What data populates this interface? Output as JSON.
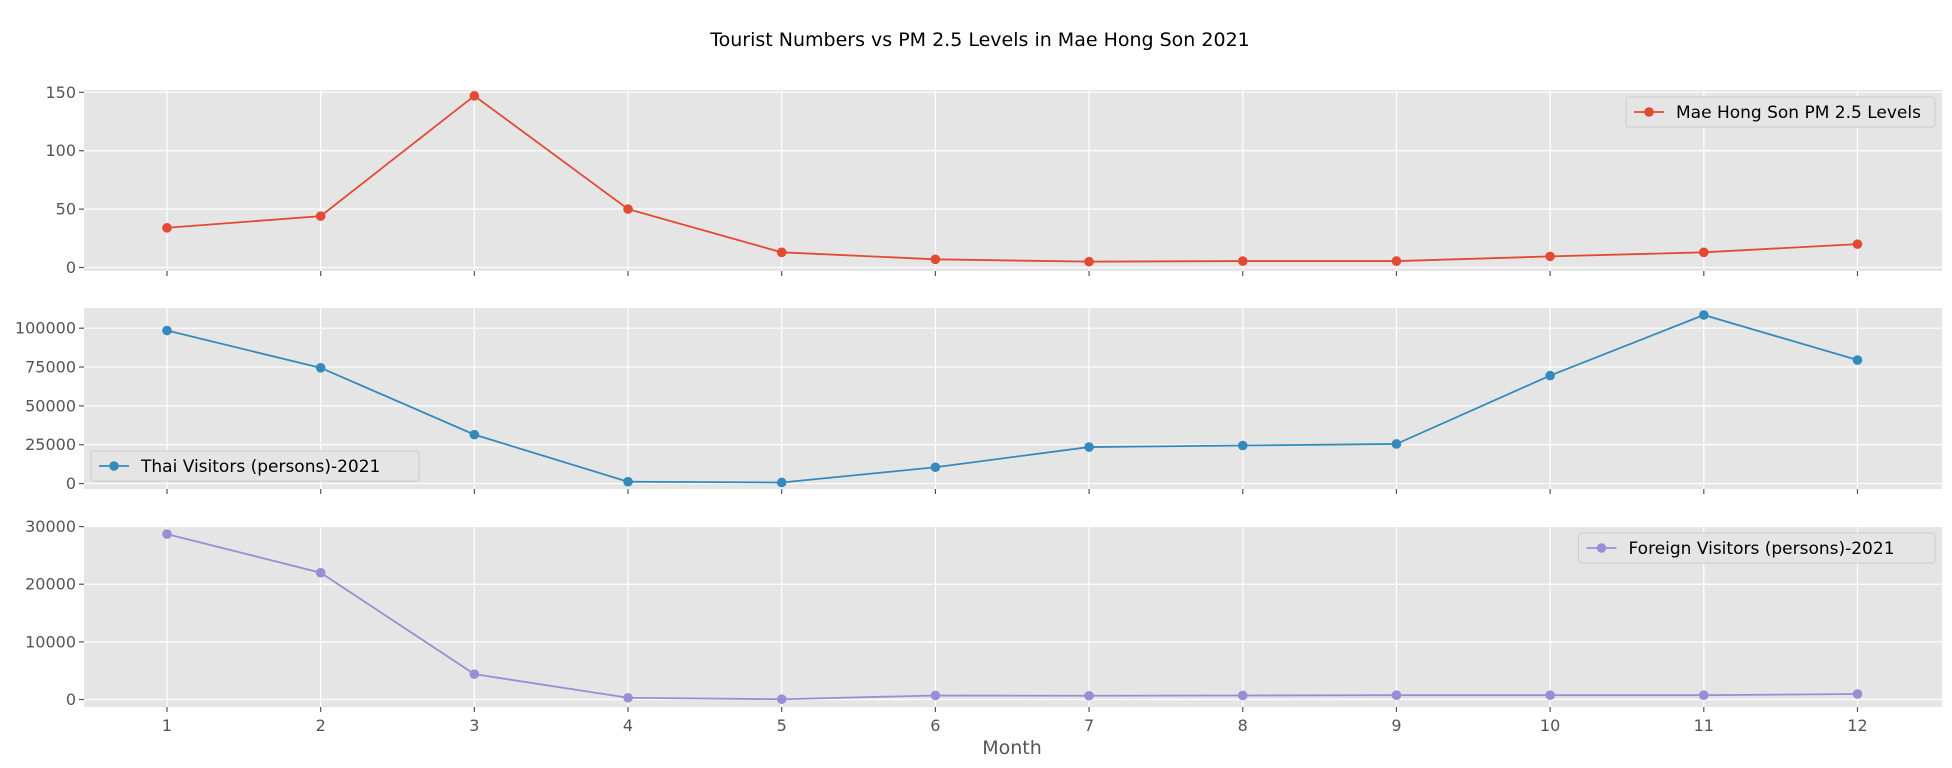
{
  "title": "Tourist Numbers vs PM 2.5 Levels  in Mae Hong Son 2021",
  "chart_data": {
    "type": "line",
    "title": "Tourist Numbers vs PM 2.5 Levels  in Mae Hong Son 2021",
    "xlabel": "Month",
    "x": [
      1,
      2,
      3,
      4,
      5,
      6,
      7,
      8,
      9,
      10,
      11,
      12
    ],
    "x_tick_labels": [
      "1",
      "2",
      "3",
      "4",
      "5",
      "6",
      "7",
      "8",
      "9",
      "10",
      "11",
      "12"
    ],
    "grid": true,
    "subplots": [
      {
        "name": "Mae Hong Son PM 2.5 Levels",
        "color": "#E24A33",
        "values": [
          34,
          44,
          147,
          50,
          13,
          7,
          5,
          5.5,
          5.5,
          9.5,
          13,
          20
        ],
        "ylim": [
          -3,
          152
        ],
        "yticks": [
          0,
          50,
          100,
          150
        ],
        "ytick_labels": [
          "0",
          "50",
          "100",
          "150"
        ],
        "legend_position": "upper right",
        "legend_label": "Mae Hong Son PM 2.5 Levels"
      },
      {
        "name": "Thai Visitors (persons)-2021",
        "color": "#348ABD",
        "values": [
          98500,
          74500,
          31500,
          1200,
          700,
          10500,
          23500,
          24500,
          25500,
          69500,
          108500,
          79500
        ],
        "ylim": [
          -3500,
          113000
        ],
        "yticks": [
          0,
          25000,
          50000,
          75000,
          100000
        ],
        "ytick_labels": [
          "0",
          "25000",
          "50000",
          "75000",
          "100000"
        ],
        "legend_position": "lower left",
        "legend_label": "Thai Visitors (persons)-2021"
      },
      {
        "name": "Foreign Visitors (persons)-2021",
        "color": "#988ED5",
        "values": [
          28700,
          22000,
          4400,
          300,
          50,
          700,
          650,
          700,
          750,
          750,
          750,
          950
        ],
        "ylim": [
          -1300,
          30100
        ],
        "yticks": [
          0,
          10000,
          20000,
          30000
        ],
        "ytick_labels": [
          "0",
          "10000",
          "20000",
          "30000"
        ],
        "legend_position": "upper right",
        "legend_label": "Foreign Visitors (persons)-2021"
      }
    ]
  }
}
